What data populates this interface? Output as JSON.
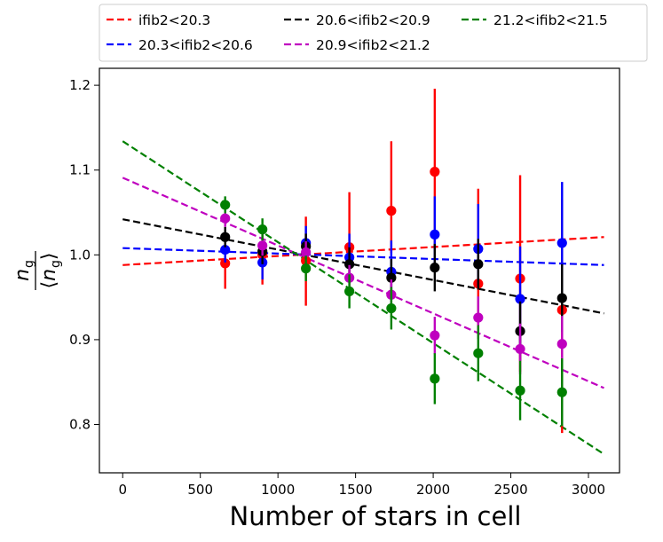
{
  "chart_data": {
    "type": "scatter",
    "title": "",
    "xlabel": "Number of stars in cell",
    "ylabel_main": "n",
    "ylabel_sub": "g",
    "ylabel_den_open": "⟨",
    "ylabel_den_close": "⟩",
    "xlim": [
      -150,
      3200
    ],
    "ylim": [
      0.743,
      1.22
    ],
    "xticks": [
      0,
      500,
      1000,
      1500,
      2000,
      2500,
      3000
    ],
    "xtick_labels": [
      "0",
      "500",
      "1000",
      "1500",
      "2000",
      "2500",
      "3000"
    ],
    "yticks": [
      0.8,
      0.9,
      1.0,
      1.1,
      1.2
    ],
    "ytick_labels": [
      "0.8",
      "0.9",
      "1.0",
      "1.1",
      "1.2"
    ],
    "grid": false,
    "legend_position": "top",
    "x": [
      660,
      900,
      1180,
      1460,
      1730,
      2010,
      2290,
      2560,
      2830
    ],
    "series": [
      {
        "name": "ifib2<20.3",
        "color": "#ff0000",
        "values": [
          0.99,
          1.0,
          0.993,
          1.009,
          1.052,
          1.098,
          0.966,
          0.972,
          0.935
        ],
        "err_low": [
          0.03,
          0.035,
          0.053,
          0.04,
          0.05,
          0.09,
          0.06,
          0.11,
          0.145
        ],
        "err_high": [
          0.03,
          0.035,
          0.052,
          0.065,
          0.082,
          0.098,
          0.112,
          0.122,
          0.13
        ],
        "fit": [
          0.988,
          1.021
        ]
      },
      {
        "name": "20.3<ifib2<20.6",
        "color": "#0000ff",
        "values": [
          1.006,
          0.991,
          1.014,
          0.997,
          0.98,
          1.024,
          1.007,
          0.948,
          1.014
        ],
        "err_low": [
          0.015,
          0.02,
          0.02,
          0.025,
          0.03,
          0.035,
          0.045,
          0.055,
          0.07
        ],
        "err_high": [
          0.015,
          0.02,
          0.02,
          0.028,
          0.037,
          0.045,
          0.053,
          0.062,
          0.072
        ],
        "fit": [
          1.008,
          0.988
        ]
      },
      {
        "name": "20.6<ifib2<20.9",
        "color": "#000000",
        "values": [
          1.021,
          1.004,
          1.01,
          0.989,
          0.973,
          0.985,
          0.989,
          0.91,
          0.949
        ],
        "err_low": [
          0.012,
          0.015,
          0.015,
          0.02,
          0.022,
          0.028,
          0.03,
          0.035,
          0.04
        ],
        "err_high": [
          0.012,
          0.015,
          0.015,
          0.02,
          0.022,
          0.028,
          0.03,
          0.035,
          0.04
        ],
        "fit": [
          1.042,
          0.931
        ]
      },
      {
        "name": "20.9<ifib2<21.2",
        "color": "#bf00bf",
        "values": [
          1.043,
          1.011,
          1.003,
          0.973,
          0.953,
          0.905,
          0.926,
          0.889,
          0.895
        ],
        "err_low": [
          0.01,
          0.012,
          0.013,
          0.015,
          0.018,
          0.022,
          0.025,
          0.03,
          0.033
        ],
        "err_high": [
          0.01,
          0.012,
          0.013,
          0.015,
          0.018,
          0.022,
          0.025,
          0.03,
          0.033
        ],
        "fit": [
          1.091,
          0.843
        ]
      },
      {
        "name": "21.2<ifib2<21.5",
        "color": "#008000",
        "values": [
          1.059,
          1.03,
          0.984,
          0.957,
          0.937,
          0.854,
          0.884,
          0.84,
          0.838
        ],
        "err_low": [
          0.01,
          0.013,
          0.015,
          0.02,
          0.025,
          0.03,
          0.033,
          0.035,
          0.04
        ],
        "err_high": [
          0.01,
          0.013,
          0.015,
          0.02,
          0.025,
          0.03,
          0.033,
          0.035,
          0.04
        ],
        "fit": [
          1.134,
          0.765
        ]
      }
    ],
    "fit_x": [
      0,
      3100
    ]
  }
}
